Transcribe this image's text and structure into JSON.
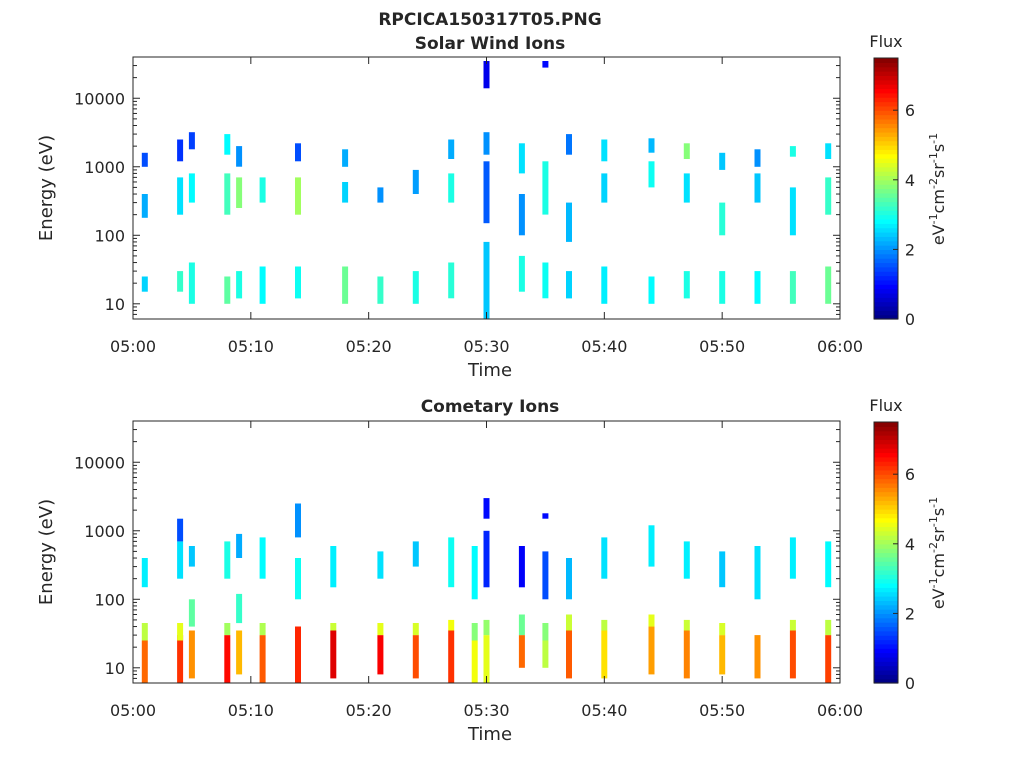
{
  "figure_title": "RPCICA150317T05.PNG",
  "chart_data": [
    {
      "type": "heatmap",
      "title": "Solar Wind Ions",
      "xlabel": "Time",
      "ylabel": "Energy (eV)",
      "x_range": [
        "05:00",
        "06:00"
      ],
      "x_ticks": [
        "05:00",
        "05:10",
        "05:20",
        "05:30",
        "05:40",
        "05:50",
        "06:00"
      ],
      "y_scale": "log",
      "y_range": [
        6,
        40000
      ],
      "y_ticks": [
        "10",
        "100",
        "1000",
        "10000"
      ],
      "colorbar": {
        "title": "Flux",
        "label": "eV-1cm-2sr-1s-1",
        "range": [
          0,
          7.5
        ],
        "ticks": [
          "0",
          "2",
          "4",
          "6"
        ],
        "colormap": "jet"
      },
      "grid": false,
      "columns": [
        {
          "t": "05:01",
          "cells": [
            [
              15,
              25,
              2.5
            ],
            [
              180,
              400,
              2.2
            ],
            [
              1000,
              1600,
              1.5
            ]
          ]
        },
        {
          "t": "05:04",
          "cells": [
            [
              15,
              30,
              3.2
            ],
            [
              200,
              700,
              2.6
            ],
            [
              1200,
              2500,
              1.3
            ]
          ]
        },
        {
          "t": "05:05",
          "cells": [
            [
              10,
              40,
              3.0
            ],
            [
              300,
              800,
              2.8
            ],
            [
              1800,
              3200,
              1.4
            ]
          ]
        },
        {
          "t": "05:08",
          "cells": [
            [
              10,
              25,
              3.5
            ],
            [
              200,
              800,
              3.3
            ],
            [
              1500,
              3000,
              2.8
            ]
          ]
        },
        {
          "t": "05:09",
          "cells": [
            [
              12,
              30,
              3.0
            ],
            [
              250,
              700,
              3.8
            ],
            [
              1000,
              2000,
              2.0
            ]
          ]
        },
        {
          "t": "05:11",
          "cells": [
            [
              10,
              35,
              2.8
            ],
            [
              300,
              700,
              3.0
            ]
          ]
        },
        {
          "t": "05:14",
          "cells": [
            [
              12,
              35,
              2.9
            ],
            [
              200,
              700,
              4.0
            ],
            [
              1200,
              2200,
              1.5
            ]
          ]
        },
        {
          "t": "05:18",
          "cells": [
            [
              10,
              35,
              3.6
            ],
            [
              300,
              600,
              2.5
            ],
            [
              1000,
              1800,
              2.2
            ]
          ]
        },
        {
          "t": "05:21",
          "cells": [
            [
              10,
              25,
              3.2
            ],
            [
              300,
              500,
              2.0
            ]
          ]
        },
        {
          "t": "05:24",
          "cells": [
            [
              10,
              30,
              3.0
            ],
            [
              400,
              900,
              2.1
            ]
          ]
        },
        {
          "t": "05:27",
          "cells": [
            [
              12,
              40,
              3.1
            ],
            [
              300,
              800,
              3.0
            ],
            [
              1300,
              2500,
              2.2
            ]
          ]
        },
        {
          "t": "05:30",
          "cells": [
            [
              6,
              80,
              2.4
            ],
            [
              150,
              1200,
              1.6
            ],
            [
              1500,
              3200,
              2.0
            ],
            [
              14000,
              35000,
              0.8
            ]
          ]
        },
        {
          "t": "05:33",
          "cells": [
            [
              15,
              50,
              3.0
            ],
            [
              100,
              400,
              2.0
            ],
            [
              800,
              2200,
              2.6
            ]
          ]
        },
        {
          "t": "05:35",
          "cells": [
            [
              12,
              40,
              2.9
            ],
            [
              200,
              1200,
              3.0
            ],
            [
              28000,
              35000,
              1.0
            ]
          ]
        },
        {
          "t": "05:37",
          "cells": [
            [
              12,
              30,
              2.5
            ],
            [
              80,
              300,
              2.3
            ],
            [
              1500,
              3000,
              1.8
            ]
          ]
        },
        {
          "t": "05:40",
          "cells": [
            [
              10,
              35,
              2.7
            ],
            [
              300,
              800,
              2.5
            ],
            [
              1200,
              2500,
              2.6
            ]
          ]
        },
        {
          "t": "05:44",
          "cells": [
            [
              10,
              25,
              2.8
            ],
            [
              500,
              1200,
              2.9
            ],
            [
              1600,
              2600,
              2.3
            ]
          ]
        },
        {
          "t": "05:47",
          "cells": [
            [
              12,
              30,
              3.0
            ],
            [
              300,
              800,
              2.6
            ],
            [
              1300,
              2200,
              3.8
            ]
          ]
        },
        {
          "t": "05:50",
          "cells": [
            [
              10,
              30,
              3.0
            ],
            [
              100,
              300,
              3.1
            ],
            [
              900,
              1600,
              2.4
            ]
          ]
        },
        {
          "t": "05:53",
          "cells": [
            [
              10,
              30,
              2.8
            ],
            [
              300,
              800,
              2.4
            ],
            [
              1000,
              1800,
              2.0
            ]
          ]
        },
        {
          "t": "05:56",
          "cells": [
            [
              10,
              30,
              3.3
            ],
            [
              100,
              500,
              2.6
            ],
            [
              1400,
              2000,
              3.0
            ]
          ]
        },
        {
          "t": "05:59",
          "cells": [
            [
              10,
              35,
              3.6
            ],
            [
              200,
              700,
              3.2
            ],
            [
              1300,
              2200,
              2.6
            ]
          ]
        }
      ]
    },
    {
      "type": "heatmap",
      "title": "Cometary Ions",
      "xlabel": "Time",
      "ylabel": "Energy (eV)",
      "x_range": [
        "05:00",
        "06:00"
      ],
      "x_ticks": [
        "05:00",
        "05:10",
        "05:20",
        "05:30",
        "05:40",
        "05:50",
        "06:00"
      ],
      "y_scale": "log",
      "y_range": [
        6,
        40000
      ],
      "y_ticks": [
        "10",
        "100",
        "1000",
        "10000"
      ],
      "colorbar": {
        "title": "Flux",
        "label": "eV-1cm-2sr-1s-1",
        "range": [
          0,
          7.5
        ],
        "ticks": [
          "0",
          "2",
          "4",
          "6"
        ],
        "colormap": "jet"
      },
      "grid": false,
      "columns": [
        {
          "t": "05:01",
          "cells": [
            [
              6,
              25,
              5.8
            ],
            [
              25,
              45,
              4.2
            ],
            [
              150,
              400,
              2.7
            ]
          ]
        },
        {
          "t": "05:04",
          "cells": [
            [
              6,
              30,
              6.2
            ],
            [
              25,
              45,
              4.5
            ],
            [
              200,
              700,
              2.6
            ],
            [
              700,
              1500,
              1.5
            ]
          ]
        },
        {
          "t": "05:05",
          "cells": [
            [
              7,
              35,
              5.5
            ],
            [
              40,
              100,
              3.5
            ],
            [
              300,
              600,
              2.4
            ]
          ]
        },
        {
          "t": "05:08",
          "cells": [
            [
              6,
              30,
              6.5
            ],
            [
              30,
              45,
              4.0
            ],
            [
              200,
              700,
              3.0
            ]
          ]
        },
        {
          "t": "05:09",
          "cells": [
            [
              8,
              35,
              5.2
            ],
            [
              45,
              120,
              3.2
            ],
            [
              400,
              900,
              2.2
            ]
          ]
        },
        {
          "t": "05:11",
          "cells": [
            [
              6,
              30,
              5.9
            ],
            [
              30,
              45,
              4.1
            ],
            [
              200,
              800,
              2.8
            ]
          ]
        },
        {
          "t": "05:14",
          "cells": [
            [
              6,
              40,
              6.3
            ],
            [
              100,
              400,
              2.9
            ],
            [
              800,
              2500,
              2.0
            ]
          ]
        },
        {
          "t": "05:17",
          "cells": [
            [
              7,
              35,
              6.8
            ],
            [
              35,
              45,
              4.3
            ],
            [
              150,
              600,
              2.7
            ]
          ]
        },
        {
          "t": "05:21",
          "cells": [
            [
              8,
              30,
              6.6
            ],
            [
              30,
              45,
              4.5
            ],
            [
              200,
              500,
              2.6
            ]
          ]
        },
        {
          "t": "05:24",
          "cells": [
            [
              7,
              30,
              6.0
            ],
            [
              30,
              45,
              4.4
            ],
            [
              300,
              700,
              2.4
            ]
          ]
        },
        {
          "t": "05:27",
          "cells": [
            [
              6,
              35,
              6.2
            ],
            [
              35,
              50,
              4.6
            ],
            [
              150,
              800,
              2.9
            ]
          ]
        },
        {
          "t": "05:29",
          "cells": [
            [
              6,
              25,
              4.6
            ],
            [
              25,
              45,
              3.8
            ],
            [
              100,
              600,
              2.8
            ]
          ]
        },
        {
          "t": "05:30",
          "cells": [
            [
              6,
              30,
              4.5
            ],
            [
              30,
              50,
              3.9
            ],
            [
              150,
              1000,
              1.2
            ],
            [
              1500,
              3000,
              1.0
            ]
          ]
        },
        {
          "t": "05:33",
          "cells": [
            [
              10,
              30,
              5.8
            ],
            [
              30,
              60,
              3.6
            ],
            [
              150,
              600,
              0.9
            ]
          ]
        },
        {
          "t": "05:35",
          "cells": [
            [
              10,
              25,
              4.2
            ],
            [
              25,
              45,
              3.8
            ],
            [
              100,
              500,
              1.5
            ],
            [
              1500,
              1800,
              1.0
            ]
          ]
        },
        {
          "t": "05:37",
          "cells": [
            [
              7,
              35,
              5.9
            ],
            [
              35,
              60,
              4.3
            ],
            [
              100,
              400,
              2.3
            ]
          ]
        },
        {
          "t": "05:40",
          "cells": [
            [
              7,
              35,
              4.9
            ],
            [
              35,
              50,
              4.2
            ],
            [
              200,
              800,
              2.6
            ]
          ]
        },
        {
          "t": "05:44",
          "cells": [
            [
              8,
              40,
              5.4
            ],
            [
              40,
              60,
              4.5
            ],
            [
              300,
              1200,
              2.7
            ]
          ]
        },
        {
          "t": "05:47",
          "cells": [
            [
              7,
              35,
              5.6
            ],
            [
              35,
              50,
              4.3
            ],
            [
              200,
              700,
              2.7
            ]
          ]
        },
        {
          "t": "05:50",
          "cells": [
            [
              8,
              30,
              5.2
            ],
            [
              30,
              45,
              4.4
            ],
            [
              150,
              500,
              2.4
            ]
          ]
        },
        {
          "t": "05:53",
          "cells": [
            [
              7,
              30,
              5.5
            ],
            [
              100,
              600,
              2.6
            ]
          ]
        },
        {
          "t": "05:56",
          "cells": [
            [
              7,
              35,
              6.0
            ],
            [
              35,
              50,
              4.3
            ],
            [
              200,
              800,
              2.7
            ]
          ]
        },
        {
          "t": "05:59",
          "cells": [
            [
              6,
              30,
              6.1
            ],
            [
              30,
              50,
              4.2
            ],
            [
              150,
              700,
              2.8
            ]
          ]
        }
      ]
    }
  ]
}
